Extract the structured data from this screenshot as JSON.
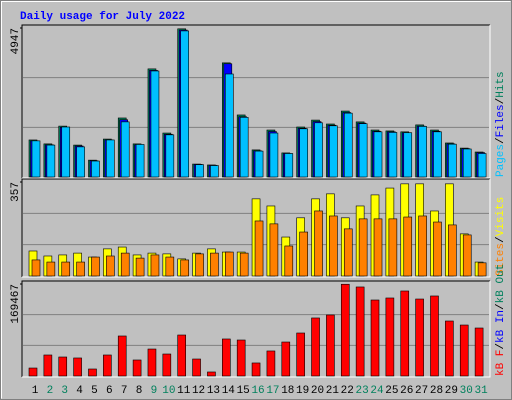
{
  "title": "Daily usage for July 2022",
  "legend_separator": "/",
  "chart_data": [
    {
      "type": "bar",
      "ylim": [
        0,
        4947
      ],
      "yticks": [
        4947
      ],
      "series": [
        {
          "name": "Hits",
          "color": "#00805c",
          "values": [
            1230,
            1100,
            1690,
            1060,
            560,
            1260,
            1960,
            1100,
            3590,
            1460,
            4920,
            430,
            400,
            3790,
            2060,
            900,
            1560,
            800,
            1660,
            1890,
            1760,
            2190,
            1830,
            1560,
            1530,
            1500,
            1730,
            1560,
            1130,
            960,
            830
          ]
        },
        {
          "name": "Files",
          "color": "#0000ff",
          "values": [
            1200,
            1070,
            1650,
            1030,
            540,
            1230,
            1900,
            1070,
            3540,
            1420,
            4880,
            420,
            390,
            3760,
            2000,
            870,
            1510,
            780,
            1620,
            1840,
            1720,
            2140,
            1790,
            1520,
            1500,
            1470,
            1690,
            1520,
            1100,
            940,
            810
          ]
        },
        {
          "name": "Pages",
          "color": "#00c0ff",
          "values": [
            1200,
            1060,
            1660,
            1000,
            530,
            1230,
            1830,
            1080,
            3520,
            1400,
            4850,
            410,
            380,
            3420,
            1980,
            860,
            1460,
            780,
            1600,
            1800,
            1700,
            2120,
            1770,
            1500,
            1480,
            1470,
            1680,
            1500,
            1090,
            930,
            780
          ]
        }
      ]
    },
    {
      "type": "bar",
      "ylim": [
        0,
        357
      ],
      "yticks": [
        357
      ],
      "series": [
        {
          "name": "Visits",
          "color": "#ffff00",
          "values": [
            95,
            76,
            80,
            87,
            72,
            103,
            110,
            80,
            87,
            84,
            65,
            87,
            103,
            91,
            91,
            293,
            266,
            148,
            221,
            293,
            312,
            221,
            266,
            308,
            334,
            350,
            350,
            247,
            350,
            160,
            53
          ]
        },
        {
          "name": "Sites",
          "color": "#ff8000",
          "values": [
            61,
            53,
            53,
            53,
            72,
            76,
            87,
            68,
            80,
            72,
            61,
            84,
            87,
            91,
            87,
            209,
            198,
            114,
            167,
            247,
            228,
            179,
            217,
            217,
            217,
            224,
            228,
            205,
            194,
            156,
            50
          ]
        }
      ]
    },
    {
      "type": "bar",
      "ylim": [
        0,
        169467
      ],
      "yticks": [
        169467
      ],
      "series": [
        {
          "name": "kB F",
          "color": "#ff0000",
          "values": [
            14700,
            38700,
            35000,
            33200,
            12900,
            38700,
            73700,
            29500,
            49700,
            40500,
            75500,
            31300,
            7400,
            68200,
            66300,
            24000,
            46100,
            62600,
            79200,
            106900,
            112400,
            169000,
            164000,
            140000,
            143700,
            156600,
            141800,
            147400,
            101300,
            93900,
            88400
          ]
        }
      ],
      "legend_only": [
        {
          "name": "kB In",
          "color": "#0000ff"
        },
        {
          "name": "kB Out",
          "color": "#00805c"
        }
      ],
      "categories": [
        "1",
        "2",
        "3",
        "4",
        "5",
        "6",
        "7",
        "8",
        "9",
        "10",
        "11",
        "12",
        "13",
        "14",
        "15",
        "16",
        "17",
        "18",
        "19",
        "20",
        "21",
        "22",
        "23",
        "24",
        "25",
        "26",
        "27",
        "28",
        "29",
        "30",
        "31"
      ],
      "category_colors": [
        "#000000",
        "#00805c",
        "#00805c",
        "#000000",
        "#000000",
        "#000000",
        "#000000",
        "#000000",
        "#00805c",
        "#00805c",
        "#000000",
        "#000000",
        "#000000",
        "#000000",
        "#000000",
        "#00805c",
        "#00805c",
        "#000000",
        "#000000",
        "#000000",
        "#000000",
        "#000000",
        "#00805c",
        "#00805c",
        "#000000",
        "#000000",
        "#000000",
        "#000000",
        "#000000",
        "#00805c",
        "#00805c"
      ]
    }
  ]
}
